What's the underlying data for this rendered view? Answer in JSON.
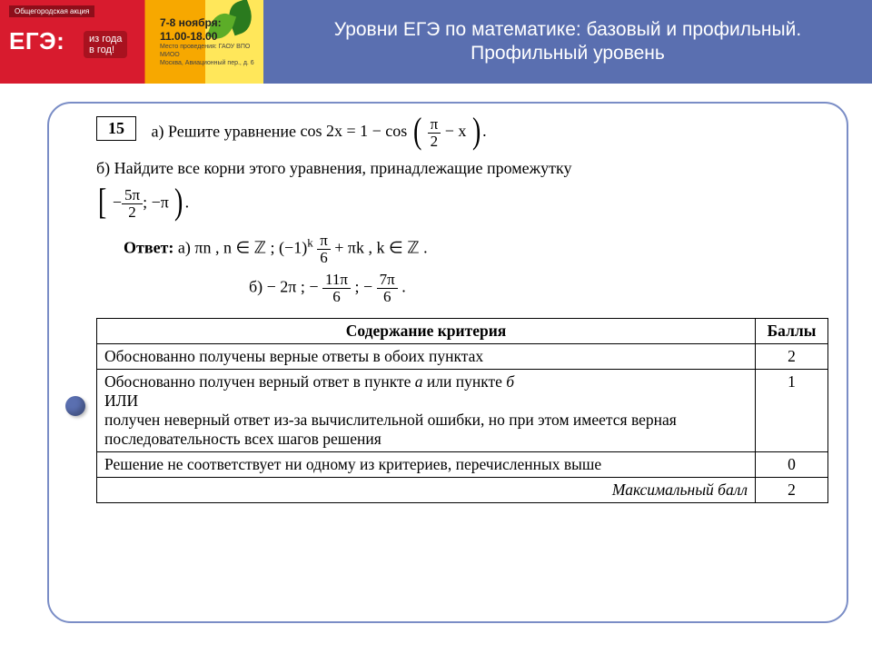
{
  "banner": {
    "aktsiya": "Общегородская акция",
    "logo": "ЕГЭ:",
    "tag_line1": "из года",
    "tag_line2": "в год!",
    "dates": "7-8 ноября:",
    "time": "11.00-18.00",
    "venue1": "Место проведения: ГАОУ ВПО МИОО",
    "venue2": "Москва, Авиационный пер., д. 6"
  },
  "title": {
    "line1": "Уровни ЕГЭ по математике: базовый и профильный.",
    "line2": "Профильный уровень"
  },
  "task": {
    "number": "15",
    "part_a_prefix": "а) Решите уравнение ",
    "part_a_formula_lhs": "cos 2x = 1 − cos",
    "part_a_frac_num": "π",
    "part_a_frac_den": "2",
    "part_a_minus_x": " − x",
    "part_b_text": "б) Найдите все корни этого уравнения, принадлежащие промежутку",
    "interval_left_num": "5π",
    "interval_left_den": "2",
    "interval_right": "−π",
    "answer_label": "Ответ:",
    "ans_a_prefix": "а)  πn ,  n ∈ ℤ ;   (−1)",
    "ans_a_sup": "k",
    "ans_a_mid_num": "π",
    "ans_a_mid_den": "6",
    "ans_a_tail": " + πk ,  k ∈ ℤ .",
    "ans_b_prefix": "б)  − 2π ;  −",
    "ans_b_f1_num": "11π",
    "ans_b_f1_den": "6",
    "ans_b_sep": " ;  −",
    "ans_b_f2_num": "7π",
    "ans_b_f2_den": "6",
    "ans_b_tail": " ."
  },
  "criteria": {
    "header_criterion": "Содержание критерия",
    "header_points": "Баллы",
    "rows": [
      {
        "text": "Обоснованно получены верные ответы в обоих пунктах",
        "points": "2"
      },
      {
        "text": "Обоснованно получен верный ответ в пункте а или пункте б\nИЛИ\nполучен неверный ответ из-за вычислительной ошибки, но при этом имеется верная последовательность всех шагов решения",
        "points": "1"
      },
      {
        "text": "Решение не соответствует ни одному из критериев, перечисленных выше",
        "points": "0"
      }
    ],
    "max_label": "Максимальный балл",
    "max_points": "2"
  },
  "colors": {
    "accent": "#5a6fb0",
    "border": "#7a8dc6",
    "banner_red": "#d81b2e",
    "banner_orange": "#f7a800",
    "banner_yellow": "#ffe75a"
  }
}
